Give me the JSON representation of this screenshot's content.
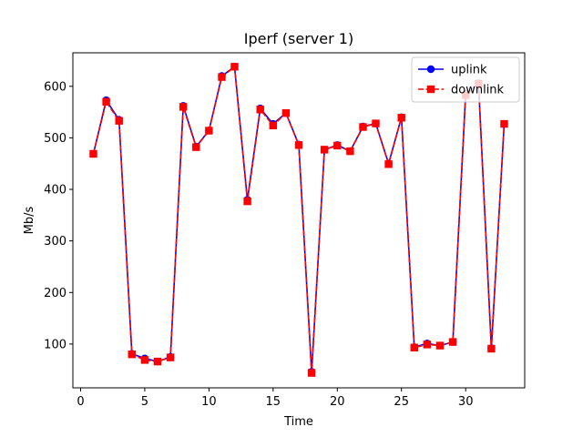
{
  "chart_data": {
    "type": "line",
    "title": "Iperf (server 1)",
    "xlabel": "Time",
    "ylabel": "Mb/s",
    "xlim": [
      -0.6,
      34.6
    ],
    "ylim": [
      15,
      665
    ],
    "xticks": [
      0,
      5,
      10,
      15,
      20,
      25,
      30
    ],
    "yticks": [
      100,
      200,
      300,
      400,
      500,
      600
    ],
    "grid": false,
    "legend_position": "top-right",
    "x": [
      1,
      2,
      3,
      4,
      5,
      6,
      7,
      8,
      9,
      10,
      11,
      12,
      13,
      14,
      15,
      16,
      17,
      18,
      19,
      20,
      21,
      22,
      23,
      24,
      25,
      26,
      27,
      28,
      29,
      30,
      31,
      32,
      33
    ],
    "series": [
      {
        "name": "uplink",
        "color": "#0000ff",
        "marker": "circle",
        "linestyle": "solid",
        "values": [
          469,
          573,
          535,
          81,
          72,
          66,
          75,
          562,
          483,
          514,
          620,
          638,
          380,
          557,
          527,
          548,
          487,
          46,
          477,
          486,
          474,
          522,
          528,
          450,
          540,
          94,
          101,
          97,
          104,
          585,
          606,
          92,
          527
        ]
      },
      {
        "name": "downlink",
        "color": "#ff0000",
        "marker": "square",
        "linestyle": "dashed",
        "values": [
          469,
          570,
          533,
          80,
          69,
          66,
          74,
          560,
          482,
          514,
          618,
          638,
          377,
          555,
          524,
          548,
          486,
          44,
          477,
          485,
          474,
          521,
          528,
          449,
          539,
          93,
          99,
          97,
          104,
          583,
          605,
          91,
          527
        ]
      }
    ]
  }
}
